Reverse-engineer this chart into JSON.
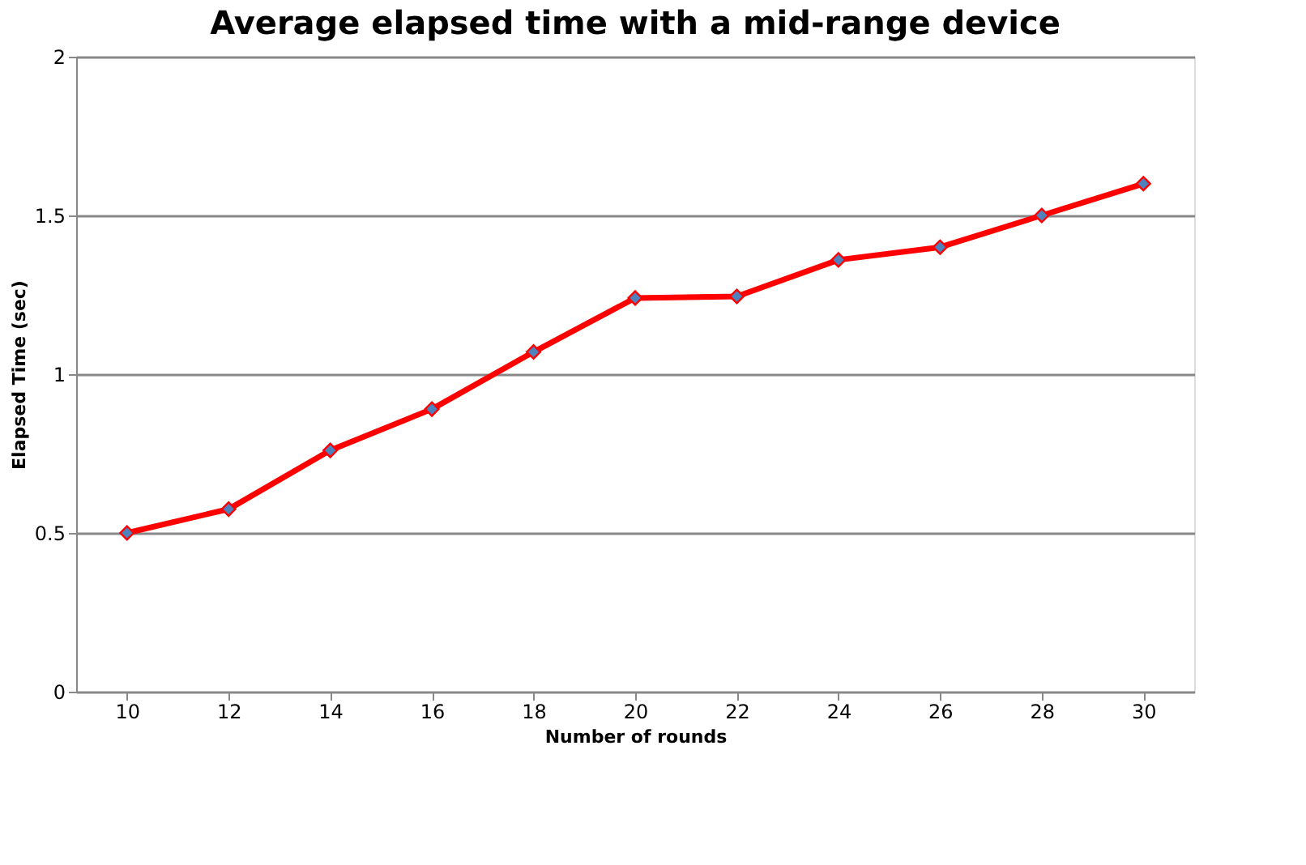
{
  "chart_data": {
    "type": "line",
    "title": "Average elapsed time with a mid-range device",
    "xlabel": "Number of rounds",
    "ylabel": "Elapsed Time (sec)",
    "categories": [
      "10",
      "12",
      "14",
      "16",
      "18",
      "20",
      "22",
      "24",
      "26",
      "28",
      "30"
    ],
    "series": [
      {
        "color": "#ff0000",
        "values": [
          0.5,
          0.575,
          0.76,
          0.89,
          1.07,
          1.24,
          1.245,
          1.36,
          1.4,
          1.5,
          1.6
        ]
      }
    ],
    "ylim": [
      0,
      2
    ],
    "yticks": [
      0,
      0.5,
      1,
      1.5,
      2
    ],
    "grid": "y",
    "marker": "diamond",
    "line_style": "solid"
  }
}
